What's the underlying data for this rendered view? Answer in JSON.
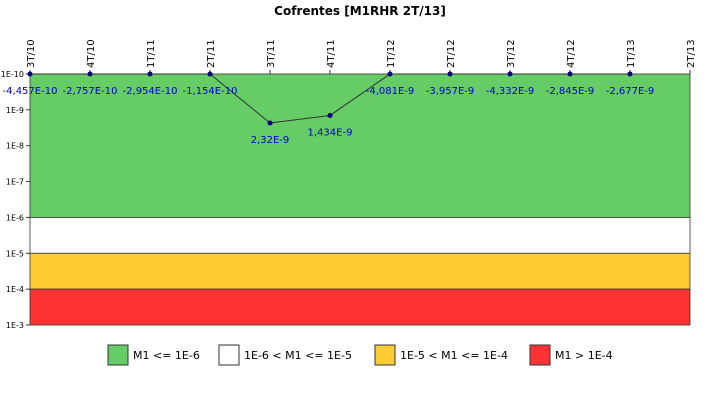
{
  "chart_data": {
    "type": "line",
    "title": "Cofrentes [M1RHR 2T/13]",
    "categories": [
      "3T/10",
      "4T/10",
      "1T/11",
      "2T/11",
      "3T/11",
      "4T/11",
      "1T/12",
      "2T/12",
      "3T/12",
      "4T/12",
      "1T/13",
      "2T/13"
    ],
    "series": [
      {
        "color": "#333333",
        "marker_color": "#000080",
        "label_color": "#0000cc",
        "values": [
          -4.457e-10,
          -2.757e-10,
          -2.954e-10,
          -1.154e-10,
          2.32e-09,
          1.434e-09,
          -4.081e-09,
          -3.957e-09,
          -4.332e-09,
          -2.845e-09,
          -2.677e-09,
          null
        ],
        "value_labels": [
          "-4,457E-10",
          "-2,757E-10",
          "-2,954E-10",
          "-1,154E-10",
          "2,32E-9",
          "1,434E-9",
          "-4,081E-9",
          "-3,957E-9",
          "-4,332E-9",
          "-2,845E-9",
          "-2,677E-9",
          null
        ]
      }
    ],
    "ylim": [
      1e-10,
      0.001
    ],
    "log_y": true,
    "yticks": [
      {
        "value": 1e-10,
        "label": "1E-10"
      },
      {
        "value": 1e-09,
        "label": "1E-9"
      },
      {
        "value": 1e-08,
        "label": "1E-8"
      },
      {
        "value": 1e-07,
        "label": "1E-7"
      },
      {
        "value": 1e-06,
        "label": "1E-6"
      },
      {
        "value": 1e-05,
        "label": "1E-5"
      },
      {
        "value": 0.0001,
        "label": "1E-4"
      },
      {
        "value": 0.001,
        "label": "1E-3"
      }
    ],
    "bands": [
      {
        "name": "M1 <= 1E-6",
        "color": "#66cc66",
        "from": 1e-10,
        "to": 1e-06
      },
      {
        "name": "1E-6 < M1 <= 1E-5",
        "color": "#ffffff",
        "from": 1e-06,
        "to": 1e-05
      },
      {
        "name": "1E-5 < M1 <= 1E-4",
        "color": "#ffcc33",
        "from": 1e-05,
        "to": 0.0001
      },
      {
        "name": "M1 > 1E-4",
        "color": "#ff3333",
        "from": 0.0001,
        "to": 0.001
      }
    ]
  }
}
